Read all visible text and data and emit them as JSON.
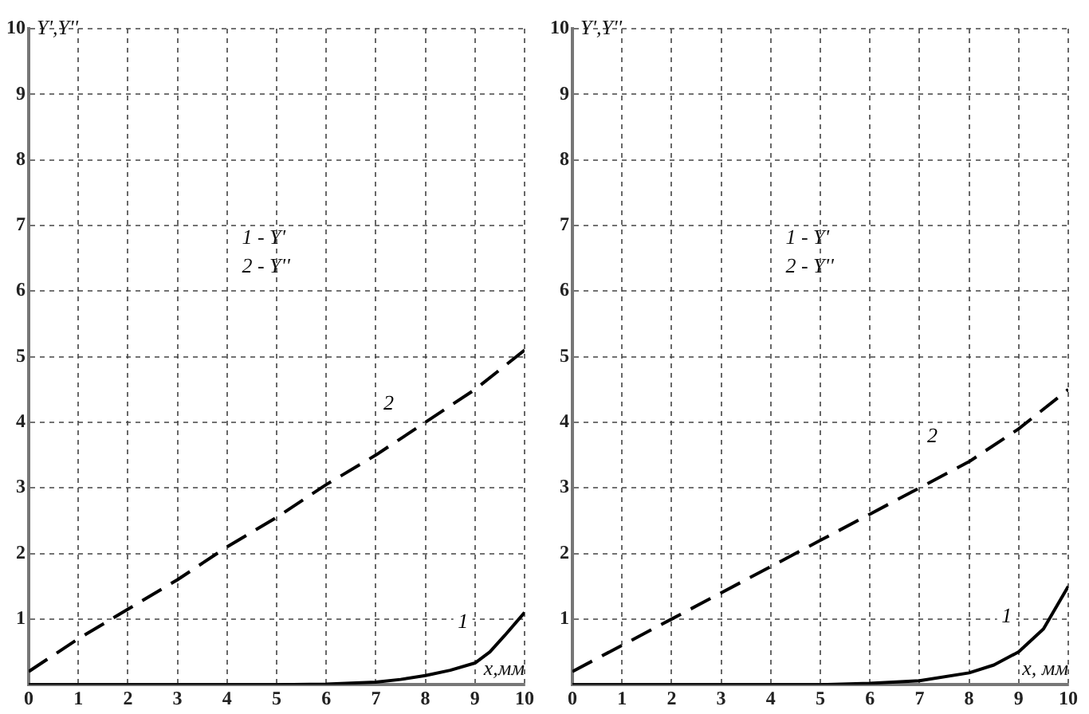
{
  "chart_data": [
    {
      "type": "line",
      "xlabel": "x,мм",
      "ylabel": "Y',Y''",
      "xlim": [
        0,
        10
      ],
      "ylim": [
        0,
        10
      ],
      "xticks": [
        0,
        1,
        2,
        3,
        4,
        5,
        6,
        7,
        8,
        9,
        10
      ],
      "yticks": [
        {
          "value": 0,
          "label": null
        },
        1,
        2,
        3,
        4,
        5,
        6,
        7,
        8,
        9,
        10
      ],
      "grid": true,
      "marker": "none",
      "series": [
        {
          "name": "1",
          "color": "#000000",
          "line_style": "solid",
          "x": [
            0,
            1,
            2,
            3,
            4,
            5,
            6,
            7,
            7.5,
            8,
            8.5,
            9,
            9.3,
            9.6,
            10
          ],
          "values": [
            0,
            0,
            0,
            0,
            0,
            0,
            0.01,
            0.04,
            0.08,
            0.14,
            0.22,
            0.33,
            0.5,
            0.75,
            1.1
          ]
        },
        {
          "name": "2",
          "color": "#000000",
          "line_style": "dashed",
          "x": [
            0,
            1,
            2,
            3,
            4,
            5,
            6,
            7,
            8,
            9,
            10
          ],
          "values": [
            0.2,
            0.7,
            1.15,
            1.6,
            2.1,
            2.55,
            3.05,
            3.5,
            4.0,
            4.5,
            5.1
          ]
        }
      ],
      "annotations": [
        "1 - Y'",
        "2 - Y''"
      ]
    },
    {
      "type": "line",
      "xlabel": "x, мм",
      "ylabel": "Y',Y''",
      "xlim": [
        0,
        10
      ],
      "ylim": [
        0,
        10
      ],
      "xticks": [
        0,
        1,
        2,
        3,
        4,
        5,
        6,
        7,
        8,
        9,
        10
      ],
      "yticks": [
        {
          "value": 0,
          "label": null
        },
        1,
        2,
        3,
        4,
        5,
        6,
        7,
        8,
        9,
        10
      ],
      "grid": true,
      "marker": "none",
      "series": [
        {
          "name": "1",
          "color": "#000000",
          "line_style": "solid",
          "x": [
            0,
            1,
            2,
            3,
            4,
            5,
            6,
            7,
            8,
            8.5,
            9,
            9.5,
            10
          ],
          "values": [
            0,
            0,
            0,
            0,
            0,
            0,
            0.02,
            0.06,
            0.18,
            0.3,
            0.5,
            0.85,
            1.5
          ]
        },
        {
          "name": "2",
          "color": "#000000",
          "line_style": "dashed",
          "x": [
            0,
            1,
            2,
            3,
            4,
            5,
            6,
            7,
            8,
            9,
            10
          ],
          "values": [
            0.2,
            0.6,
            1.0,
            1.4,
            1.8,
            2.2,
            2.6,
            3.0,
            3.4,
            3.9,
            4.5
          ]
        }
      ],
      "annotations": [
        "1 - Y'",
        "2 - Y''"
      ]
    }
  ]
}
